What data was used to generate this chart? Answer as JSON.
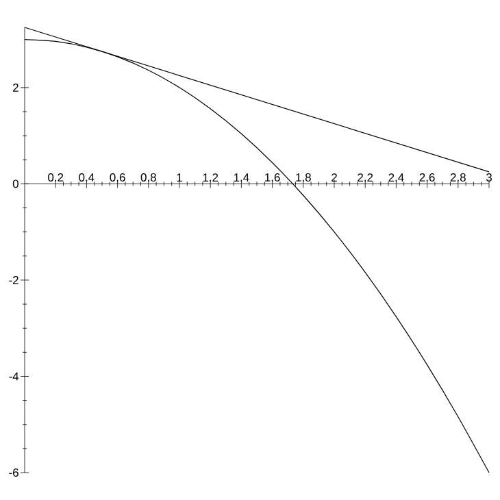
{
  "chart_data": {
    "type": "line",
    "xlim": [
      0,
      3
    ],
    "ylim": [
      -6,
      3.25
    ],
    "xticks": [
      0.2,
      0.4,
      0.6,
      0.8,
      1,
      1.2,
      1.4,
      1.6,
      1.8,
      2,
      2.2,
      2.4,
      2.6,
      2.8,
      3
    ],
    "yticks": [
      -6,
      -4,
      -2,
      0,
      2
    ],
    "series": [
      {
        "color": "#000000",
        "x": [
          0,
          0.2,
          0.4,
          0.6,
          0.8,
          1,
          1.2,
          1.4,
          1.6,
          1.8,
          2,
          2.2,
          2.4,
          2.6,
          2.8,
          3
        ],
        "values": [
          3,
          2.96,
          2.84,
          2.64,
          2.36,
          2,
          1.56,
          1.04,
          0.44,
          -0.24,
          -1,
          -1.84,
          -2.76,
          -3.76,
          -4.84,
          -6
        ]
      },
      {
        "color": "#000000",
        "x": [
          0,
          3
        ],
        "values": [
          3.25,
          0.25
        ]
      }
    ]
  }
}
